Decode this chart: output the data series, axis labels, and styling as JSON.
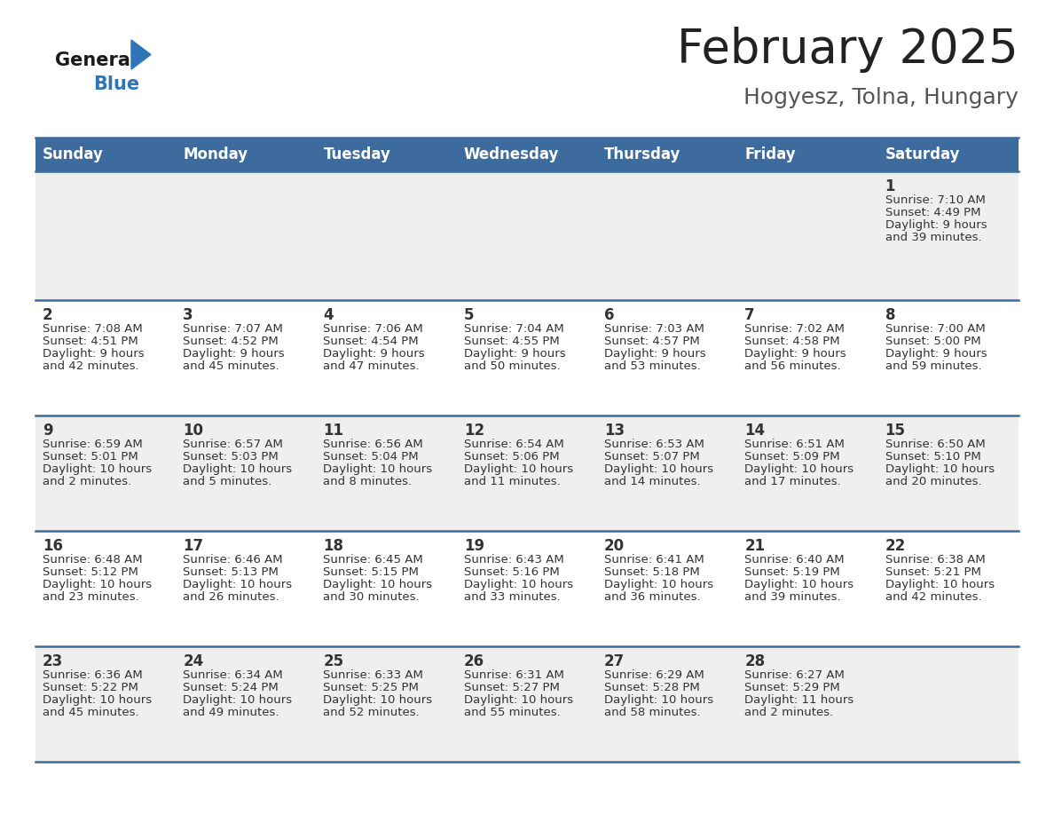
{
  "title": "February 2025",
  "subtitle": "Hogyesz, Tolna, Hungary",
  "header_bg_color": "#3d6b9e",
  "header_text_color": "#ffffff",
  "row_bg_even": "#efefef",
  "row_bg_odd": "#ffffff",
  "day_headers": [
    "Sunday",
    "Monday",
    "Tuesday",
    "Wednesday",
    "Thursday",
    "Friday",
    "Saturday"
  ],
  "title_color": "#222222",
  "subtitle_color": "#555555",
  "cell_text_color": "#333333",
  "divider_color": "#3d6b9e",
  "logo_general_color": "#1a1a1a",
  "logo_blue_color": "#2e75b6",
  "logo_triangle_color": "#2e75b6",
  "days": [
    {
      "day": 1,
      "col": 6,
      "row": 0,
      "sunrise": "7:10 AM",
      "sunset": "4:49 PM",
      "daylight_h": "9 hours",
      "daylight_m": "and 39 minutes."
    },
    {
      "day": 2,
      "col": 0,
      "row": 1,
      "sunrise": "7:08 AM",
      "sunset": "4:51 PM",
      "daylight_h": "9 hours",
      "daylight_m": "and 42 minutes."
    },
    {
      "day": 3,
      "col": 1,
      "row": 1,
      "sunrise": "7:07 AM",
      "sunset": "4:52 PM",
      "daylight_h": "9 hours",
      "daylight_m": "and 45 minutes."
    },
    {
      "day": 4,
      "col": 2,
      "row": 1,
      "sunrise": "7:06 AM",
      "sunset": "4:54 PM",
      "daylight_h": "9 hours",
      "daylight_m": "and 47 minutes."
    },
    {
      "day": 5,
      "col": 3,
      "row": 1,
      "sunrise": "7:04 AM",
      "sunset": "4:55 PM",
      "daylight_h": "9 hours",
      "daylight_m": "and 50 minutes."
    },
    {
      "day": 6,
      "col": 4,
      "row": 1,
      "sunrise": "7:03 AM",
      "sunset": "4:57 PM",
      "daylight_h": "9 hours",
      "daylight_m": "and 53 minutes."
    },
    {
      "day": 7,
      "col": 5,
      "row": 1,
      "sunrise": "7:02 AM",
      "sunset": "4:58 PM",
      "daylight_h": "9 hours",
      "daylight_m": "and 56 minutes."
    },
    {
      "day": 8,
      "col": 6,
      "row": 1,
      "sunrise": "7:00 AM",
      "sunset": "5:00 PM",
      "daylight_h": "9 hours",
      "daylight_m": "and 59 minutes."
    },
    {
      "day": 9,
      "col": 0,
      "row": 2,
      "sunrise": "6:59 AM",
      "sunset": "5:01 PM",
      "daylight_h": "10 hours",
      "daylight_m": "and 2 minutes."
    },
    {
      "day": 10,
      "col": 1,
      "row": 2,
      "sunrise": "6:57 AM",
      "sunset": "5:03 PM",
      "daylight_h": "10 hours",
      "daylight_m": "and 5 minutes."
    },
    {
      "day": 11,
      "col": 2,
      "row": 2,
      "sunrise": "6:56 AM",
      "sunset": "5:04 PM",
      "daylight_h": "10 hours",
      "daylight_m": "and 8 minutes."
    },
    {
      "day": 12,
      "col": 3,
      "row": 2,
      "sunrise": "6:54 AM",
      "sunset": "5:06 PM",
      "daylight_h": "10 hours",
      "daylight_m": "and 11 minutes."
    },
    {
      "day": 13,
      "col": 4,
      "row": 2,
      "sunrise": "6:53 AM",
      "sunset": "5:07 PM",
      "daylight_h": "10 hours",
      "daylight_m": "and 14 minutes."
    },
    {
      "day": 14,
      "col": 5,
      "row": 2,
      "sunrise": "6:51 AM",
      "sunset": "5:09 PM",
      "daylight_h": "10 hours",
      "daylight_m": "and 17 minutes."
    },
    {
      "day": 15,
      "col": 6,
      "row": 2,
      "sunrise": "6:50 AM",
      "sunset": "5:10 PM",
      "daylight_h": "10 hours",
      "daylight_m": "and 20 minutes."
    },
    {
      "day": 16,
      "col": 0,
      "row": 3,
      "sunrise": "6:48 AM",
      "sunset": "5:12 PM",
      "daylight_h": "10 hours",
      "daylight_m": "and 23 minutes."
    },
    {
      "day": 17,
      "col": 1,
      "row": 3,
      "sunrise": "6:46 AM",
      "sunset": "5:13 PM",
      "daylight_h": "10 hours",
      "daylight_m": "and 26 minutes."
    },
    {
      "day": 18,
      "col": 2,
      "row": 3,
      "sunrise": "6:45 AM",
      "sunset": "5:15 PM",
      "daylight_h": "10 hours",
      "daylight_m": "and 30 minutes."
    },
    {
      "day": 19,
      "col": 3,
      "row": 3,
      "sunrise": "6:43 AM",
      "sunset": "5:16 PM",
      "daylight_h": "10 hours",
      "daylight_m": "and 33 minutes."
    },
    {
      "day": 20,
      "col": 4,
      "row": 3,
      "sunrise": "6:41 AM",
      "sunset": "5:18 PM",
      "daylight_h": "10 hours",
      "daylight_m": "and 36 minutes."
    },
    {
      "day": 21,
      "col": 5,
      "row": 3,
      "sunrise": "6:40 AM",
      "sunset": "5:19 PM",
      "daylight_h": "10 hours",
      "daylight_m": "and 39 minutes."
    },
    {
      "day": 22,
      "col": 6,
      "row": 3,
      "sunrise": "6:38 AM",
      "sunset": "5:21 PM",
      "daylight_h": "10 hours",
      "daylight_m": "and 42 minutes."
    },
    {
      "day": 23,
      "col": 0,
      "row": 4,
      "sunrise": "6:36 AM",
      "sunset": "5:22 PM",
      "daylight_h": "10 hours",
      "daylight_m": "and 45 minutes."
    },
    {
      "day": 24,
      "col": 1,
      "row": 4,
      "sunrise": "6:34 AM",
      "sunset": "5:24 PM",
      "daylight_h": "10 hours",
      "daylight_m": "and 49 minutes."
    },
    {
      "day": 25,
      "col": 2,
      "row": 4,
      "sunrise": "6:33 AM",
      "sunset": "5:25 PM",
      "daylight_h": "10 hours",
      "daylight_m": "and 52 minutes."
    },
    {
      "day": 26,
      "col": 3,
      "row": 4,
      "sunrise": "6:31 AM",
      "sunset": "5:27 PM",
      "daylight_h": "10 hours",
      "daylight_m": "and 55 minutes."
    },
    {
      "day": 27,
      "col": 4,
      "row": 4,
      "sunrise": "6:29 AM",
      "sunset": "5:28 PM",
      "daylight_h": "10 hours",
      "daylight_m": "and 58 minutes."
    },
    {
      "day": 28,
      "col": 5,
      "row": 4,
      "sunrise": "6:27 AM",
      "sunset": "5:29 PM",
      "daylight_h": "11 hours",
      "daylight_m": "and 2 minutes."
    }
  ]
}
